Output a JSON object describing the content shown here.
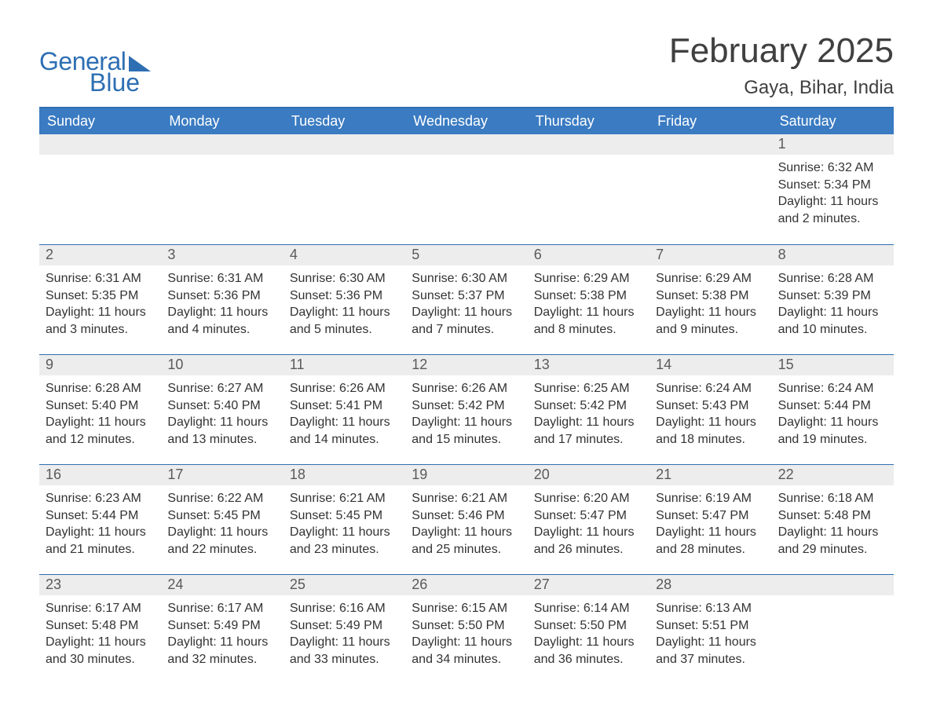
{
  "brand": {
    "general": "General",
    "blue": "Blue",
    "color": "#2e6fb3"
  },
  "title": "February 2025",
  "location": "Gaya, Bihar, India",
  "theme": {
    "header_bg": "#3a7bc2",
    "header_text": "#ffffff",
    "border": "#2e6fb3",
    "daynum_bg": "#ededed",
    "text": "#333333",
    "title_color": "#404040",
    "page_bg": "#ffffff"
  },
  "days_of_week": [
    "Sunday",
    "Monday",
    "Tuesday",
    "Wednesday",
    "Thursday",
    "Friday",
    "Saturday"
  ],
  "weeks": [
    [
      null,
      null,
      null,
      null,
      null,
      null,
      {
        "n": "1",
        "sunrise": "Sunrise: 6:32 AM",
        "sunset": "Sunset: 5:34 PM",
        "daylight": "Daylight: 11 hours and 2 minutes."
      }
    ],
    [
      {
        "n": "2",
        "sunrise": "Sunrise: 6:31 AM",
        "sunset": "Sunset: 5:35 PM",
        "daylight": "Daylight: 11 hours and 3 minutes."
      },
      {
        "n": "3",
        "sunrise": "Sunrise: 6:31 AM",
        "sunset": "Sunset: 5:36 PM",
        "daylight": "Daylight: 11 hours and 4 minutes."
      },
      {
        "n": "4",
        "sunrise": "Sunrise: 6:30 AM",
        "sunset": "Sunset: 5:36 PM",
        "daylight": "Daylight: 11 hours and 5 minutes."
      },
      {
        "n": "5",
        "sunrise": "Sunrise: 6:30 AM",
        "sunset": "Sunset: 5:37 PM",
        "daylight": "Daylight: 11 hours and 7 minutes."
      },
      {
        "n": "6",
        "sunrise": "Sunrise: 6:29 AM",
        "sunset": "Sunset: 5:38 PM",
        "daylight": "Daylight: 11 hours and 8 minutes."
      },
      {
        "n": "7",
        "sunrise": "Sunrise: 6:29 AM",
        "sunset": "Sunset: 5:38 PM",
        "daylight": "Daylight: 11 hours and 9 minutes."
      },
      {
        "n": "8",
        "sunrise": "Sunrise: 6:28 AM",
        "sunset": "Sunset: 5:39 PM",
        "daylight": "Daylight: 11 hours and 10 minutes."
      }
    ],
    [
      {
        "n": "9",
        "sunrise": "Sunrise: 6:28 AM",
        "sunset": "Sunset: 5:40 PM",
        "daylight": "Daylight: 11 hours and 12 minutes."
      },
      {
        "n": "10",
        "sunrise": "Sunrise: 6:27 AM",
        "sunset": "Sunset: 5:40 PM",
        "daylight": "Daylight: 11 hours and 13 minutes."
      },
      {
        "n": "11",
        "sunrise": "Sunrise: 6:26 AM",
        "sunset": "Sunset: 5:41 PM",
        "daylight": "Daylight: 11 hours and 14 minutes."
      },
      {
        "n": "12",
        "sunrise": "Sunrise: 6:26 AM",
        "sunset": "Sunset: 5:42 PM",
        "daylight": "Daylight: 11 hours and 15 minutes."
      },
      {
        "n": "13",
        "sunrise": "Sunrise: 6:25 AM",
        "sunset": "Sunset: 5:42 PM",
        "daylight": "Daylight: 11 hours and 17 minutes."
      },
      {
        "n": "14",
        "sunrise": "Sunrise: 6:24 AM",
        "sunset": "Sunset: 5:43 PM",
        "daylight": "Daylight: 11 hours and 18 minutes."
      },
      {
        "n": "15",
        "sunrise": "Sunrise: 6:24 AM",
        "sunset": "Sunset: 5:44 PM",
        "daylight": "Daylight: 11 hours and 19 minutes."
      }
    ],
    [
      {
        "n": "16",
        "sunrise": "Sunrise: 6:23 AM",
        "sunset": "Sunset: 5:44 PM",
        "daylight": "Daylight: 11 hours and 21 minutes."
      },
      {
        "n": "17",
        "sunrise": "Sunrise: 6:22 AM",
        "sunset": "Sunset: 5:45 PM",
        "daylight": "Daylight: 11 hours and 22 minutes."
      },
      {
        "n": "18",
        "sunrise": "Sunrise: 6:21 AM",
        "sunset": "Sunset: 5:45 PM",
        "daylight": "Daylight: 11 hours and 23 minutes."
      },
      {
        "n": "19",
        "sunrise": "Sunrise: 6:21 AM",
        "sunset": "Sunset: 5:46 PM",
        "daylight": "Daylight: 11 hours and 25 minutes."
      },
      {
        "n": "20",
        "sunrise": "Sunrise: 6:20 AM",
        "sunset": "Sunset: 5:47 PM",
        "daylight": "Daylight: 11 hours and 26 minutes."
      },
      {
        "n": "21",
        "sunrise": "Sunrise: 6:19 AM",
        "sunset": "Sunset: 5:47 PM",
        "daylight": "Daylight: 11 hours and 28 minutes."
      },
      {
        "n": "22",
        "sunrise": "Sunrise: 6:18 AM",
        "sunset": "Sunset: 5:48 PM",
        "daylight": "Daylight: 11 hours and 29 minutes."
      }
    ],
    [
      {
        "n": "23",
        "sunrise": "Sunrise: 6:17 AM",
        "sunset": "Sunset: 5:48 PM",
        "daylight": "Daylight: 11 hours and 30 minutes."
      },
      {
        "n": "24",
        "sunrise": "Sunrise: 6:17 AM",
        "sunset": "Sunset: 5:49 PM",
        "daylight": "Daylight: 11 hours and 32 minutes."
      },
      {
        "n": "25",
        "sunrise": "Sunrise: 6:16 AM",
        "sunset": "Sunset: 5:49 PM",
        "daylight": "Daylight: 11 hours and 33 minutes."
      },
      {
        "n": "26",
        "sunrise": "Sunrise: 6:15 AM",
        "sunset": "Sunset: 5:50 PM",
        "daylight": "Daylight: 11 hours and 34 minutes."
      },
      {
        "n": "27",
        "sunrise": "Sunrise: 6:14 AM",
        "sunset": "Sunset: 5:50 PM",
        "daylight": "Daylight: 11 hours and 36 minutes."
      },
      {
        "n": "28",
        "sunrise": "Sunrise: 6:13 AM",
        "sunset": "Sunset: 5:51 PM",
        "daylight": "Daylight: 11 hours and 37 minutes."
      },
      null
    ]
  ]
}
